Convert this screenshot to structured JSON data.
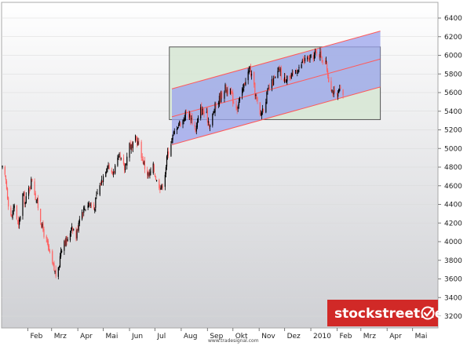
{
  "chart_data": {
    "type": "candlestick",
    "ylim": [
      3100,
      6550
    ],
    "y_ticks": [
      3200,
      3400,
      3600,
      3800,
      4000,
      4200,
      4400,
      4600,
      4800,
      5000,
      5200,
      5400,
      5600,
      5800,
      6000,
      6200,
      6400
    ],
    "x_range": [
      "2009-01-01",
      "2010-05-31"
    ],
    "x_ticks": [
      {
        "label": "Feb",
        "date": "2009-02-01"
      },
      {
        "label": "Mrz",
        "date": "2009-03-01"
      },
      {
        "label": "Apr",
        "date": "2009-04-01"
      },
      {
        "label": "Mai",
        "date": "2009-05-01"
      },
      {
        "label": "Jun",
        "date": "2009-06-01"
      },
      {
        "label": "Jul",
        "date": "2009-07-01"
      },
      {
        "label": "Aug",
        "date": "2009-08-01"
      },
      {
        "label": "Sep",
        "date": "2009-09-01"
      },
      {
        "label": "Okt",
        "date": "2009-10-01"
      },
      {
        "label": "Nov",
        "date": "2009-11-01"
      },
      {
        "label": "Dez",
        "date": "2009-12-01"
      },
      {
        "label": "2010",
        "date": "2010-01-01"
      },
      {
        "label": "Feb",
        "date": "2010-02-01"
      },
      {
        "label": "Mrz",
        "date": "2010-03-01"
      },
      {
        "label": "Apr",
        "date": "2010-04-01"
      },
      {
        "label": "Mai",
        "date": "2010-05-01"
      }
    ],
    "series": [
      {
        "close_path": [
          [
            "2009-01-02",
            4780
          ],
          [
            "2009-01-06",
            4650
          ],
          [
            "2009-01-09",
            4420
          ],
          [
            "2009-01-13",
            4250
          ],
          [
            "2009-01-16",
            4400
          ],
          [
            "2009-01-21",
            4150
          ],
          [
            "2009-01-26",
            4500
          ],
          [
            "2009-01-29",
            4420
          ],
          [
            "2009-02-02",
            4560
          ],
          [
            "2009-02-06",
            4680
          ],
          [
            "2009-02-10",
            4480
          ],
          [
            "2009-02-13",
            4380
          ],
          [
            "2009-02-18",
            4150
          ],
          [
            "2009-02-23",
            4000
          ],
          [
            "2009-02-27",
            3850
          ],
          [
            "2009-03-03",
            3720
          ],
          [
            "2009-03-06",
            3650
          ],
          [
            "2009-03-09",
            3680
          ],
          [
            "2009-03-12",
            3920
          ],
          [
            "2009-03-16",
            4020
          ],
          [
            "2009-03-20",
            4000
          ],
          [
            "2009-03-25",
            4180
          ],
          [
            "2009-03-30",
            4050
          ],
          [
            "2009-04-03",
            4280
          ],
          [
            "2009-04-08",
            4350
          ],
          [
            "2009-04-14",
            4420
          ],
          [
            "2009-04-20",
            4350
          ],
          [
            "2009-04-24",
            4520
          ],
          [
            "2009-04-30",
            4680
          ],
          [
            "2009-05-06",
            4850
          ],
          [
            "2009-05-11",
            4720
          ],
          [
            "2009-05-15",
            4800
          ],
          [
            "2009-05-20",
            4900
          ],
          [
            "2009-05-26",
            4780
          ],
          [
            "2009-06-01",
            5050
          ],
          [
            "2009-06-04",
            5000
          ],
          [
            "2009-06-08",
            5100
          ],
          [
            "2009-06-12",
            5050
          ],
          [
            "2009-06-16",
            4900
          ],
          [
            "2009-06-19",
            4800
          ],
          [
            "2009-06-24",
            4700
          ],
          [
            "2009-06-29",
            4800
          ],
          [
            "2009-07-03",
            4650
          ],
          [
            "2009-07-09",
            4580
          ],
          [
            "2009-07-13",
            4750
          ],
          [
            "2009-07-16",
            4950
          ],
          [
            "2009-07-21",
            5100
          ],
          [
            "2009-07-27",
            5250
          ],
          [
            "2009-08-03",
            5300
          ],
          [
            "2009-08-07",
            5400
          ],
          [
            "2009-08-13",
            5320
          ],
          [
            "2009-08-18",
            5200
          ],
          [
            "2009-08-24",
            5420
          ],
          [
            "2009-08-31",
            5350
          ],
          [
            "2009-09-04",
            5250
          ],
          [
            "2009-09-10",
            5450
          ],
          [
            "2009-09-16",
            5550
          ],
          [
            "2009-09-22",
            5650
          ],
          [
            "2009-09-28",
            5600
          ],
          [
            "2009-10-02",
            5500
          ],
          [
            "2009-10-06",
            5450
          ],
          [
            "2009-10-12",
            5600
          ],
          [
            "2009-10-16",
            5750
          ],
          [
            "2009-10-21",
            5850
          ],
          [
            "2009-10-27",
            5600
          ],
          [
            "2009-11-02",
            5350
          ],
          [
            "2009-11-06",
            5450
          ],
          [
            "2009-11-11",
            5600
          ],
          [
            "2009-11-16",
            5700
          ],
          [
            "2009-11-20",
            5750
          ],
          [
            "2009-11-25",
            5850
          ],
          [
            "2009-11-30",
            5720
          ],
          [
            "2009-12-04",
            5800
          ],
          [
            "2009-12-09",
            5750
          ],
          [
            "2009-12-14",
            5850
          ],
          [
            "2009-12-18",
            5850
          ],
          [
            "2009-12-23",
            5950
          ],
          [
            "2009-12-30",
            5950
          ],
          [
            "2010-01-05",
            6000
          ],
          [
            "2010-01-08",
            6050
          ],
          [
            "2010-01-13",
            6000
          ],
          [
            "2010-01-19",
            5900
          ],
          [
            "2010-01-22",
            5750
          ],
          [
            "2010-01-27",
            5600
          ],
          [
            "2010-02-01",
            5550
          ],
          [
            "2010-02-04",
            5620
          ],
          [
            "2010-02-08",
            5580
          ]
        ]
      }
    ],
    "annotations": [
      {
        "type": "rectangle",
        "label": "",
        "x0": "2009-07-18",
        "x1": "2010-03-24",
        "y0": 5310,
        "y1": 6090,
        "color": "#d6e6d3"
      },
      {
        "type": "regression_channel",
        "x0": "2009-07-21",
        "x1": "2010-03-24",
        "mid_y0": 5340,
        "mid_y1": 5960,
        "half_width": 300,
        "fill": "#9aa3ec",
        "line_color": "#ff5a5a"
      }
    ],
    "colors": {
      "background_top": "#ffffff",
      "background_bottom": "#cfd0d4",
      "frame": "#a8a8a8",
      "grid": "#d9d9d9",
      "up_candle": "#000000",
      "down_candle": "#ff6060"
    }
  },
  "brand": {
    "label": "stockstreet.de",
    "background": "#d12927",
    "check_icon": "check-badge-icon"
  },
  "source": {
    "label": "www.tradesignal.com"
  }
}
